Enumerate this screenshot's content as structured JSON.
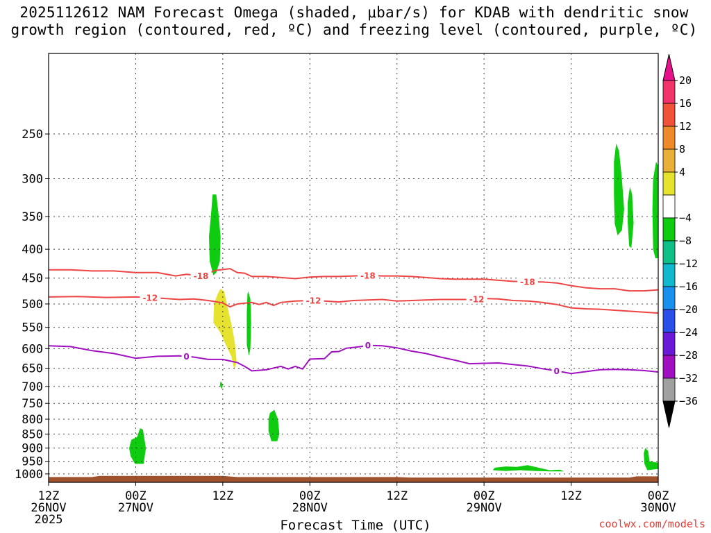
{
  "chart_data": {
    "type": "area",
    "title_line1": "2025112612 NAM Forecast Omega (shaded, μbar/s) for KDAB with dendritic snow",
    "title_line2": "growth region (contoured, red, ºC) and freezing level (contoured, purple, ºC)",
    "xlabel": "Forecast Time (UTC)",
    "ylabel": "",
    "credit": "coolwx.com/models",
    "y_scale": "log",
    "ylim": [
      1035,
      180
    ],
    "y_ticks": [
      250,
      300,
      350,
      400,
      450,
      500,
      550,
      600,
      650,
      700,
      750,
      800,
      850,
      900,
      950,
      1000
    ],
    "x_range_hours": [
      0,
      84
    ],
    "x_ticks": [
      {
        "hour": 0,
        "lines": [
          "12Z",
          "26NOV",
          "2025"
        ]
      },
      {
        "hour": 12,
        "lines": [
          "00Z",
          "27NOV"
        ]
      },
      {
        "hour": 24,
        "lines": [
          "12Z"
        ]
      },
      {
        "hour": 36,
        "lines": [
          "00Z",
          "28NOV"
        ]
      },
      {
        "hour": 48,
        "lines": [
          "12Z"
        ]
      },
      {
        "hour": 60,
        "lines": [
          "00Z",
          "29NOV"
        ]
      },
      {
        "hour": 72,
        "lines": [
          "12Z"
        ]
      },
      {
        "hour": 84,
        "lines": [
          "00Z",
          "30NOV"
        ]
      }
    ],
    "grid": true,
    "colorbar": {
      "labels": [
        "20",
        "16",
        "12",
        "8",
        "4",
        "−4",
        "−8",
        "−12",
        "−16",
        "−20",
        "−24",
        "−28",
        "−32",
        "−36"
      ],
      "colors": [
        "#f0346a",
        "#f0523a",
        "#ee8a28",
        "#e8b038",
        "#e6e230",
        "#ffffff",
        "#10cc10",
        "#10c088",
        "#12b8cc",
        "#1a90ee",
        "#2a4ee8",
        "#6a1ad6",
        "#a010c0",
        "#a0a0a0"
      ],
      "over_color": "#e8108a",
      "under_color": "#000000"
    },
    "contours": [
      {
        "label": "-18",
        "color": "#ee4444",
        "label_hours": [
          21,
          44,
          66
        ],
        "points": [
          [
            0,
            435
          ],
          [
            3,
            435
          ],
          [
            6,
            437
          ],
          [
            9,
            437
          ],
          [
            12,
            440
          ],
          [
            15,
            440
          ],
          [
            17.5,
            446
          ],
          [
            19,
            443
          ],
          [
            21,
            446
          ],
          [
            23,
            436
          ],
          [
            25,
            433
          ],
          [
            26,
            440
          ],
          [
            27,
            441
          ],
          [
            28,
            447
          ],
          [
            30,
            447
          ],
          [
            32,
            449
          ],
          [
            34,
            451
          ],
          [
            36,
            448
          ],
          [
            38,
            447
          ],
          [
            40,
            447
          ],
          [
            42,
            446
          ],
          [
            44,
            445
          ],
          [
            46,
            446
          ],
          [
            48,
            446
          ],
          [
            50,
            447
          ],
          [
            52,
            449
          ],
          [
            54,
            451
          ],
          [
            56,
            452
          ],
          [
            58,
            452
          ],
          [
            60,
            452
          ],
          [
            62,
            454
          ],
          [
            64,
            456
          ],
          [
            66,
            457
          ],
          [
            68,
            457
          ],
          [
            70,
            459
          ],
          [
            72,
            464
          ],
          [
            74,
            468
          ],
          [
            76,
            470
          ],
          [
            78,
            470
          ],
          [
            80,
            474
          ],
          [
            82,
            474
          ],
          [
            84,
            472
          ]
        ]
      },
      {
        "label": "-12",
        "color": "#ee4444",
        "label_hours": [
          14,
          36.5,
          59
        ],
        "points": [
          [
            0,
            486
          ],
          [
            4,
            485
          ],
          [
            8,
            487
          ],
          [
            12,
            486
          ],
          [
            15,
            488
          ],
          [
            18,
            491
          ],
          [
            20,
            490
          ],
          [
            22,
            493
          ],
          [
            24,
            498
          ],
          [
            25,
            506
          ],
          [
            26,
            500
          ],
          [
            28,
            497
          ],
          [
            29,
            501
          ],
          [
            30,
            497
          ],
          [
            31,
            503
          ],
          [
            32,
            497
          ],
          [
            34,
            494
          ],
          [
            36,
            493
          ],
          [
            38,
            494
          ],
          [
            40,
            496
          ],
          [
            42,
            493
          ],
          [
            44,
            492
          ],
          [
            46,
            491
          ],
          [
            48,
            494
          ],
          [
            50,
            493
          ],
          [
            52,
            492
          ],
          [
            54,
            491
          ],
          [
            56,
            491
          ],
          [
            58,
            491
          ],
          [
            60,
            489
          ],
          [
            62,
            490
          ],
          [
            64,
            493
          ],
          [
            66,
            494
          ],
          [
            68,
            497
          ],
          [
            70,
            501
          ],
          [
            72,
            508
          ],
          [
            74,
            510
          ],
          [
            76,
            511
          ],
          [
            78,
            513
          ],
          [
            80,
            515
          ],
          [
            82,
            517
          ],
          [
            84,
            519
          ]
        ]
      },
      {
        "label": "0",
        "color": "#a010c0",
        "label_hours": [
          19,
          44,
          70
        ],
        "points": [
          [
            0,
            593
          ],
          [
            3,
            595
          ],
          [
            6,
            605
          ],
          [
            9,
            612
          ],
          [
            12,
            624
          ],
          [
            15,
            619
          ],
          [
            18,
            618
          ],
          [
            20,
            621
          ],
          [
            22,
            627
          ],
          [
            24,
            627
          ],
          [
            26,
            635
          ],
          [
            27,
            645
          ],
          [
            28,
            657
          ],
          [
            30,
            654
          ],
          [
            32,
            645
          ],
          [
            33,
            652
          ],
          [
            34,
            645
          ],
          [
            35,
            652
          ],
          [
            36,
            626
          ],
          [
            38,
            625
          ],
          [
            39,
            608
          ],
          [
            40,
            607
          ],
          [
            41,
            599
          ],
          [
            43,
            595
          ],
          [
            44,
            592
          ],
          [
            46,
            593
          ],
          [
            48,
            598
          ],
          [
            50,
            606
          ],
          [
            52,
            612
          ],
          [
            54,
            621
          ],
          [
            56,
            629
          ],
          [
            58,
            638
          ],
          [
            60,
            637
          ],
          [
            62,
            636
          ],
          [
            64,
            640
          ],
          [
            66,
            644
          ],
          [
            68,
            651
          ],
          [
            70,
            657
          ],
          [
            72,
            664
          ],
          [
            74,
            659
          ],
          [
            76,
            654
          ],
          [
            78,
            653
          ],
          [
            80,
            654
          ],
          [
            82,
            656
          ],
          [
            84,
            660
          ]
        ]
      }
    ],
    "shaded_regions": [
      {
        "value": -5,
        "color": "#10cc10",
        "points": [
          [
            11.4,
            870
          ],
          [
            12.2,
            860
          ],
          [
            12.6,
            830
          ],
          [
            13,
            835
          ],
          [
            13.4,
            900
          ],
          [
            13.1,
            960
          ],
          [
            11.9,
            960
          ],
          [
            11.3,
            930
          ],
          [
            11.1,
            900
          ]
        ]
      },
      {
        "value": -5,
        "color": "#10cc10",
        "points": [
          [
            22.6,
            320
          ],
          [
            23.1,
            320
          ],
          [
            23.4,
            345
          ],
          [
            23.7,
            380
          ],
          [
            23.6,
            420
          ],
          [
            23.1,
            440
          ],
          [
            22.7,
            445
          ],
          [
            22.2,
            420
          ],
          [
            22.1,
            380
          ],
          [
            22.4,
            345
          ]
        ]
      },
      {
        "value": 5,
        "color": "#e6e230",
        "points": [
          [
            23.7,
            470
          ],
          [
            24.2,
            475
          ],
          [
            24.7,
            510
          ],
          [
            25.3,
            550
          ],
          [
            25.7,
            590
          ],
          [
            25.9,
            630
          ],
          [
            25.6,
            655
          ],
          [
            25.2,
            620
          ],
          [
            24.4,
            590
          ],
          [
            23.6,
            560
          ],
          [
            22.7,
            540
          ],
          [
            22.8,
            500
          ],
          [
            23.3,
            480
          ]
        ]
      },
      {
        "value": -5,
        "color": "#10cc10",
        "points": [
          [
            23.7,
            685
          ],
          [
            24,
            695
          ],
          [
            23.9,
            708
          ],
          [
            23.6,
            698
          ]
        ]
      },
      {
        "value": -5,
        "color": "#10cc10",
        "points": [
          [
            27.5,
            475
          ],
          [
            27.8,
            490
          ],
          [
            27.9,
            540
          ],
          [
            27.8,
            600
          ],
          [
            27.6,
            618
          ],
          [
            27.3,
            590
          ],
          [
            27.3,
            520
          ],
          [
            27.4,
            480
          ]
        ]
      },
      {
        "value": -5,
        "color": "#10cc10",
        "points": [
          [
            30.5,
            780
          ],
          [
            31.1,
            770
          ],
          [
            31.6,
            800
          ],
          [
            31.8,
            850
          ],
          [
            31.5,
            875
          ],
          [
            30.7,
            875
          ],
          [
            30.3,
            840
          ],
          [
            30.3,
            800
          ]
        ]
      },
      {
        "value": -5,
        "color": "#10cc10",
        "points": [
          [
            61.5,
            975
          ],
          [
            63,
            970
          ],
          [
            64.5,
            972
          ],
          [
            66,
            965
          ],
          [
            67.5,
            975
          ],
          [
            69,
            985
          ],
          [
            70.5,
            983
          ],
          [
            71,
            990
          ],
          [
            69,
            990
          ],
          [
            67,
            988
          ],
          [
            65,
            985
          ],
          [
            63,
            988
          ],
          [
            61.2,
            985
          ]
        ]
      },
      {
        "value": -5,
        "color": "#10cc10",
        "points": [
          [
            78.2,
            260
          ],
          [
            78.6,
            268
          ],
          [
            79,
            300
          ],
          [
            79.3,
            340
          ],
          [
            79,
            370
          ],
          [
            78.4,
            378
          ],
          [
            78,
            360
          ],
          [
            77.9,
            320
          ],
          [
            77.9,
            280
          ]
        ]
      },
      {
        "value": -5,
        "color": "#10cc10",
        "points": [
          [
            80.1,
            310
          ],
          [
            80.4,
            320
          ],
          [
            80.6,
            360
          ],
          [
            80.3,
            398
          ],
          [
            80,
            395
          ],
          [
            79.8,
            360
          ],
          [
            79.8,
            330
          ]
        ]
      },
      {
        "value": -5,
        "color": "#10cc10",
        "points": [
          [
            83.7,
            280
          ],
          [
            84,
            285
          ],
          [
            84,
            415
          ],
          [
            83.6,
            415
          ],
          [
            83.3,
            400
          ],
          [
            83.2,
            340
          ],
          [
            83.3,
            300
          ]
        ]
      },
      {
        "value": -5,
        "color": "#10cc10",
        "points": [
          [
            82.2,
            900
          ],
          [
            82.6,
            910
          ],
          [
            82.8,
            950
          ],
          [
            84,
            955
          ],
          [
            84,
            980
          ],
          [
            82.5,
            985
          ],
          [
            82.1,
            960
          ],
          [
            82,
            920
          ]
        ]
      }
    ],
    "terrain": {
      "color": "#a0522d",
      "surface_points": [
        [
          0,
          1013
        ],
        [
          6,
          1013
        ],
        [
          7,
          1008
        ],
        [
          12,
          1008
        ],
        [
          24,
          1008
        ],
        [
          26,
          1013
        ],
        [
          48,
          1013
        ],
        [
          50,
          1015
        ],
        [
          80,
          1015
        ],
        [
          81,
          1010
        ],
        [
          84,
          1010
        ]
      ]
    }
  }
}
